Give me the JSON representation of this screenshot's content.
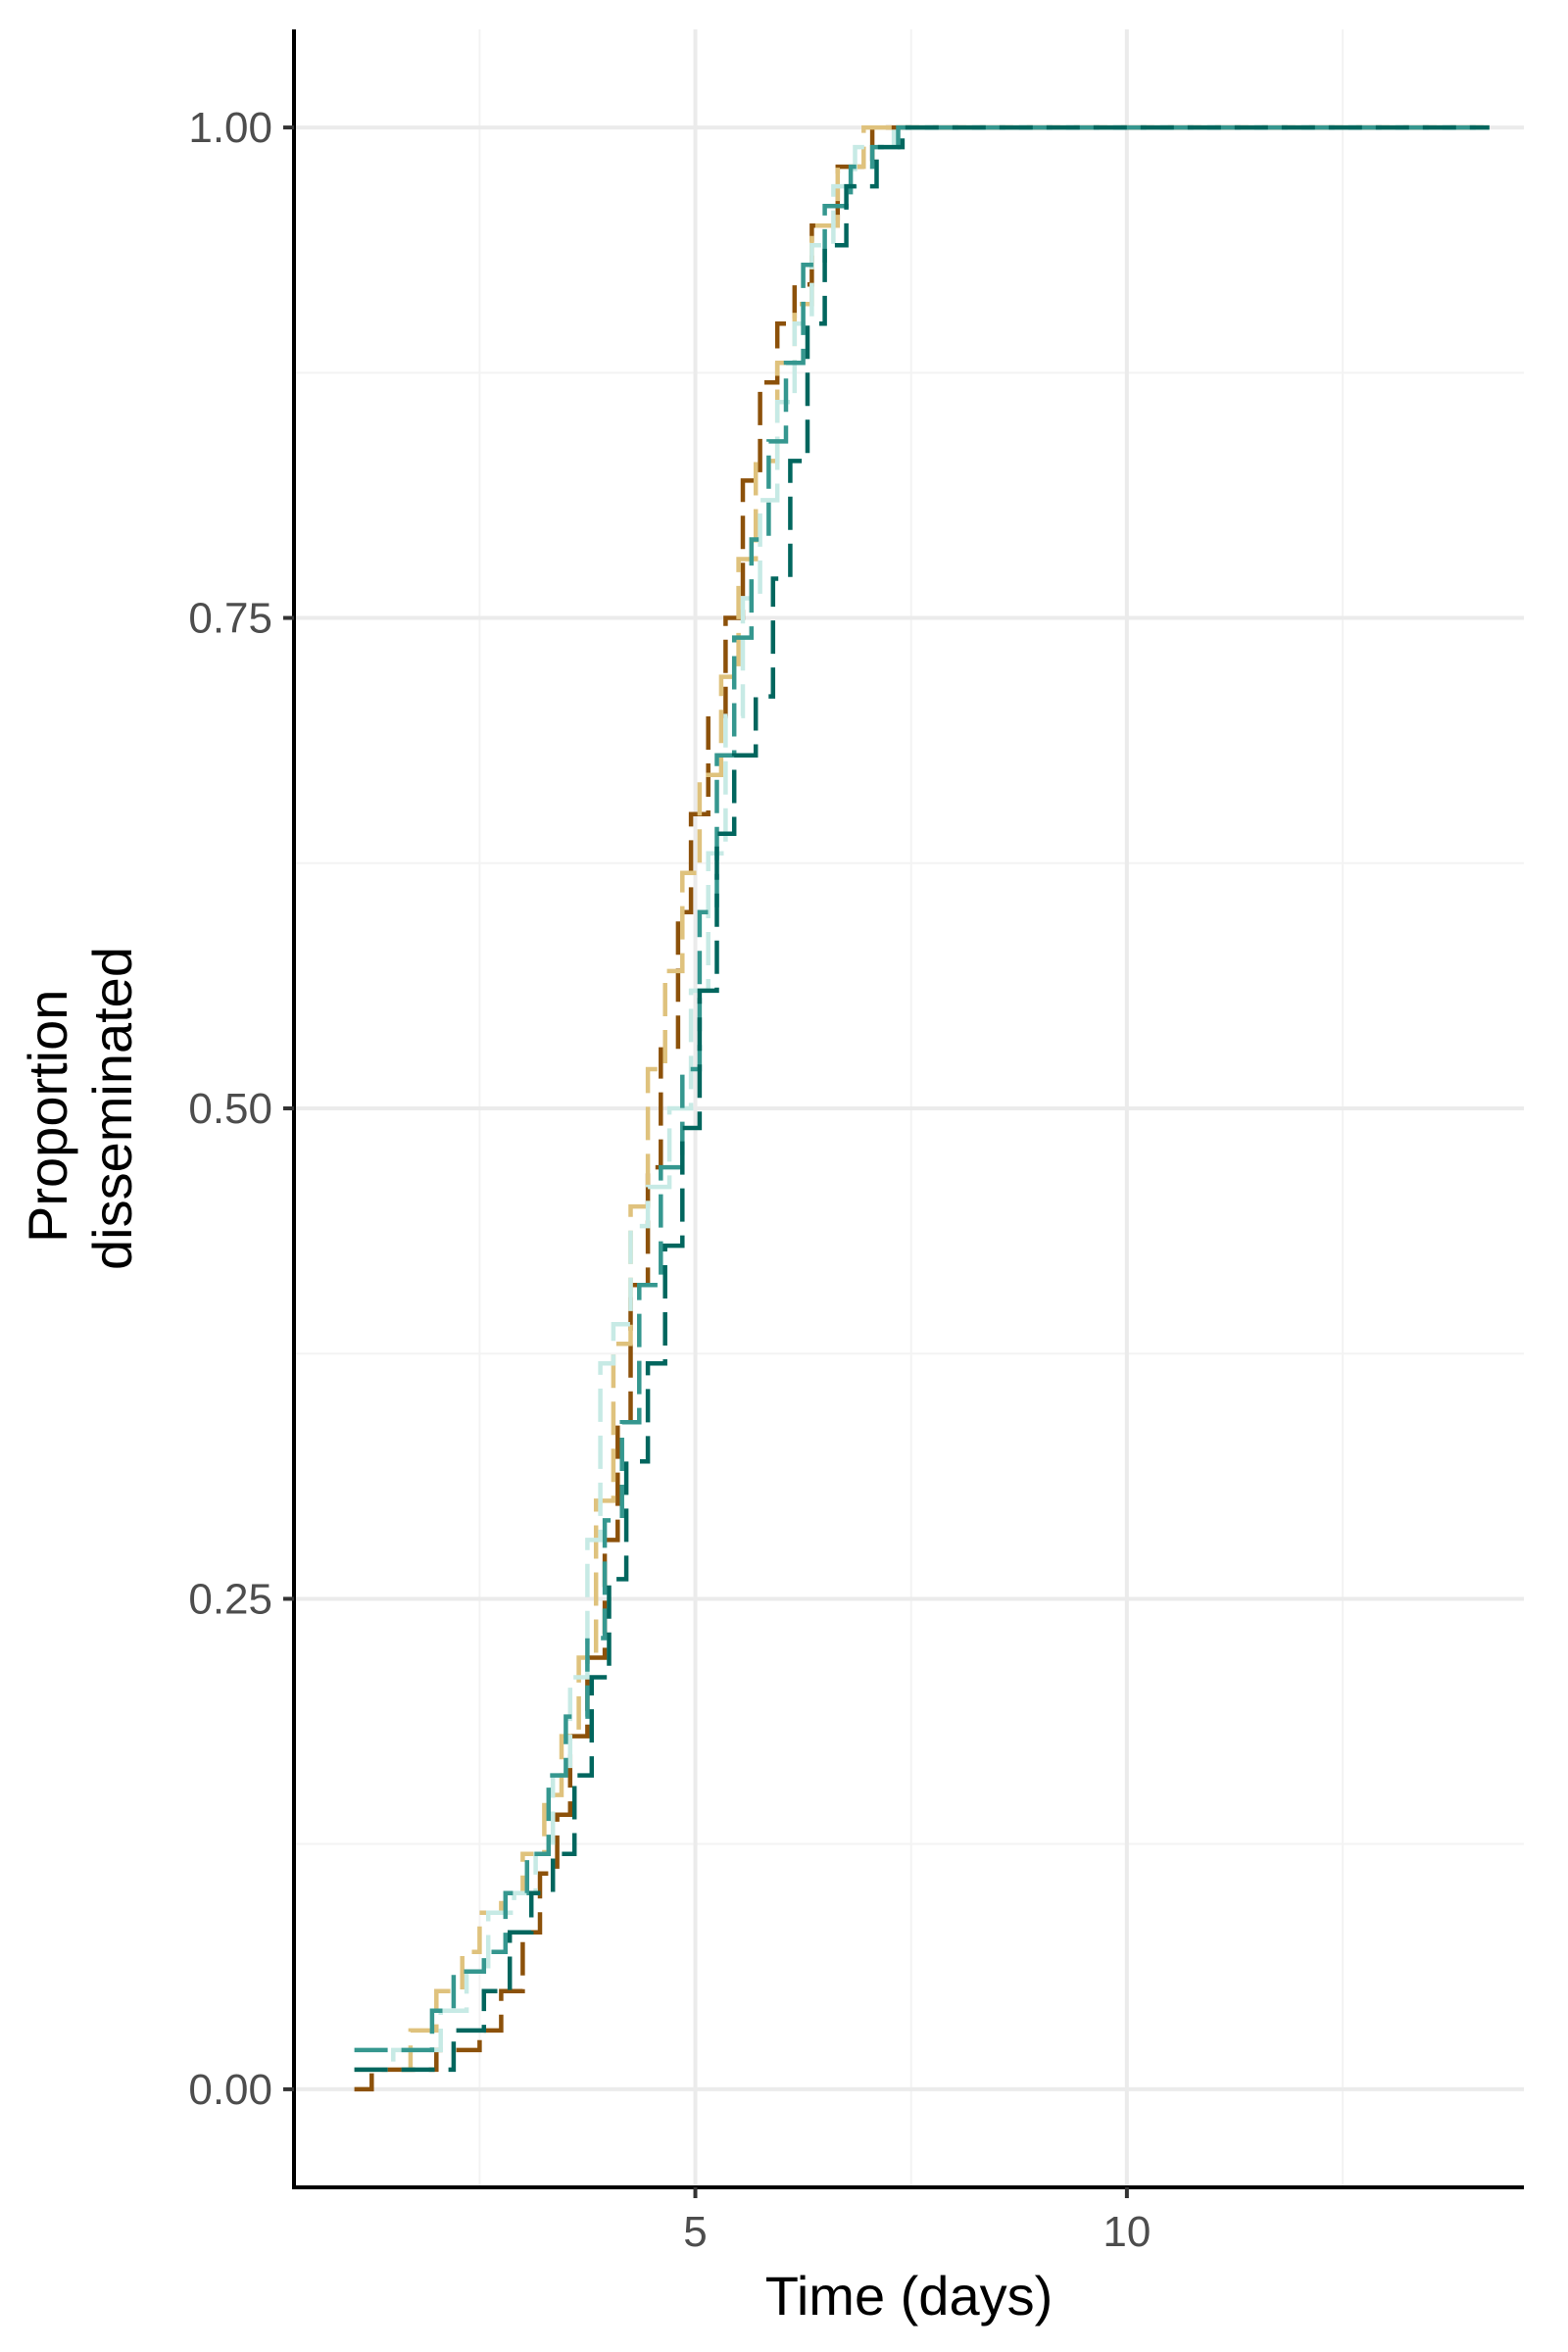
{
  "chart_data": {
    "type": "line",
    "title": "",
    "xlabel": "Time (days)",
    "ylabel": [
      "Proportion",
      "disseminated"
    ],
    "xlim": [
      0.35,
      14.6
    ],
    "ylim": [
      -0.05,
      1.05
    ],
    "x_ticks": [
      5,
      10
    ],
    "x_tick_labels": [
      "5",
      "10"
    ],
    "y_ticks": [
      0,
      0.25,
      0.5,
      0.75,
      1.0
    ],
    "y_tick_labels": [
      "0.00",
      "0.25",
      "0.50",
      "0.75",
      "1.00"
    ],
    "x_minor_ticks": [
      2.5,
      7.5,
      12.5
    ],
    "y_minor_ticks": [
      0.125,
      0.375,
      0.625,
      0.875
    ],
    "grid": true,
    "legend": "none",
    "series": [
      {
        "color": "#8c510a",
        "dash": "34 14",
        "points": [
          [
            1.05,
            0.0
          ],
          [
            1.25,
            0.01
          ],
          [
            1.6,
            0.01
          ],
          [
            2.0,
            0.02
          ],
          [
            2.3,
            0.02
          ],
          [
            2.5,
            0.03
          ],
          [
            2.75,
            0.05
          ],
          [
            3.0,
            0.08
          ],
          [
            3.2,
            0.11
          ],
          [
            3.4,
            0.14
          ],
          [
            3.55,
            0.18
          ],
          [
            3.75,
            0.22
          ],
          [
            3.95,
            0.28
          ],
          [
            4.1,
            0.34
          ],
          [
            4.25,
            0.41
          ],
          [
            4.45,
            0.47
          ],
          [
            4.6,
            0.53
          ],
          [
            4.8,
            0.6
          ],
          [
            4.95,
            0.65
          ],
          [
            5.15,
            0.7
          ],
          [
            5.35,
            0.75
          ],
          [
            5.55,
            0.82
          ],
          [
            5.75,
            0.87
          ],
          [
            5.95,
            0.9
          ],
          [
            6.15,
            0.92
          ],
          [
            6.35,
            0.95
          ],
          [
            6.65,
            0.98
          ],
          [
            7.05,
            1.0
          ],
          [
            14.2,
            1.0
          ]
        ]
      },
      {
        "color": "#dfc27d",
        "dash": "34 14",
        "points": [
          [
            1.05,
            0.01
          ],
          [
            1.4,
            0.01
          ],
          [
            1.7,
            0.03
          ],
          [
            2.0,
            0.05
          ],
          [
            2.3,
            0.07
          ],
          [
            2.5,
            0.09
          ],
          [
            2.75,
            0.1
          ],
          [
            3.0,
            0.12
          ],
          [
            3.25,
            0.15
          ],
          [
            3.45,
            0.18
          ],
          [
            3.65,
            0.22
          ],
          [
            3.85,
            0.3
          ],
          [
            4.05,
            0.38
          ],
          [
            4.25,
            0.45
          ],
          [
            4.45,
            0.52
          ],
          [
            4.65,
            0.57
          ],
          [
            4.85,
            0.62
          ],
          [
            5.05,
            0.67
          ],
          [
            5.3,
            0.72
          ],
          [
            5.5,
            0.78
          ],
          [
            5.7,
            0.83
          ],
          [
            5.95,
            0.88
          ],
          [
            6.15,
            0.91
          ],
          [
            6.35,
            0.95
          ],
          [
            6.65,
            0.98
          ],
          [
            6.95,
            1.0
          ],
          [
            14.2,
            1.0
          ]
        ]
      },
      {
        "color": "#c7eae5",
        "dash": "34 14",
        "points": [
          [
            1.05,
            0.01
          ],
          [
            1.5,
            0.02
          ],
          [
            1.8,
            0.02
          ],
          [
            2.05,
            0.04
          ],
          [
            2.35,
            0.06
          ],
          [
            2.6,
            0.09
          ],
          [
            2.9,
            0.1
          ],
          [
            3.15,
            0.12
          ],
          [
            3.35,
            0.16
          ],
          [
            3.55,
            0.21
          ],
          [
            3.75,
            0.28
          ],
          [
            3.9,
            0.37
          ],
          [
            4.05,
            0.39
          ],
          [
            4.25,
            0.44
          ],
          [
            4.45,
            0.46
          ],
          [
            4.7,
            0.5
          ],
          [
            4.95,
            0.56
          ],
          [
            5.15,
            0.63
          ],
          [
            5.35,
            0.7
          ],
          [
            5.55,
            0.76
          ],
          [
            5.75,
            0.81
          ],
          [
            5.95,
            0.86
          ],
          [
            6.15,
            0.9
          ],
          [
            6.35,
            0.94
          ],
          [
            6.6,
            0.97
          ],
          [
            6.85,
            0.99
          ],
          [
            7.3,
            1.0
          ],
          [
            14.2,
            1.0
          ]
        ]
      },
      {
        "color": "#35978f",
        "dash": "34 14",
        "points": [
          [
            1.05,
            0.02
          ],
          [
            1.6,
            0.02
          ],
          [
            1.95,
            0.04
          ],
          [
            2.2,
            0.06
          ],
          [
            2.55,
            0.07
          ],
          [
            2.8,
            0.1
          ],
          [
            3.05,
            0.12
          ],
          [
            3.3,
            0.16
          ],
          [
            3.5,
            0.19
          ],
          [
            3.75,
            0.23
          ],
          [
            3.95,
            0.29
          ],
          [
            4.15,
            0.34
          ],
          [
            4.35,
            0.41
          ],
          [
            4.6,
            0.47
          ],
          [
            4.85,
            0.52
          ],
          [
            5.05,
            0.6
          ],
          [
            5.25,
            0.68
          ],
          [
            5.45,
            0.74
          ],
          [
            5.65,
            0.79
          ],
          [
            5.85,
            0.84
          ],
          [
            6.05,
            0.88
          ],
          [
            6.25,
            0.93
          ],
          [
            6.5,
            0.96
          ],
          [
            6.8,
            0.98
          ],
          [
            7.05,
            0.99
          ],
          [
            7.35,
            1.0
          ],
          [
            14.2,
            1.0
          ]
        ]
      },
      {
        "color": "#01665e",
        "dash": "34 14",
        "points": [
          [
            1.05,
            0.01
          ],
          [
            1.9,
            0.01
          ],
          [
            2.2,
            0.03
          ],
          [
            2.55,
            0.05
          ],
          [
            2.85,
            0.08
          ],
          [
            3.1,
            0.1
          ],
          [
            3.35,
            0.12
          ],
          [
            3.6,
            0.16
          ],
          [
            3.8,
            0.21
          ],
          [
            4.0,
            0.26
          ],
          [
            4.2,
            0.32
          ],
          [
            4.45,
            0.37
          ],
          [
            4.65,
            0.43
          ],
          [
            4.85,
            0.49
          ],
          [
            5.05,
            0.56
          ],
          [
            5.25,
            0.64
          ],
          [
            5.45,
            0.68
          ],
          [
            5.7,
            0.71
          ],
          [
            5.9,
            0.77
          ],
          [
            6.1,
            0.83
          ],
          [
            6.3,
            0.9
          ],
          [
            6.5,
            0.94
          ],
          [
            6.75,
            0.97
          ],
          [
            7.1,
            0.99
          ],
          [
            7.4,
            1.0
          ],
          [
            14.2,
            1.0
          ]
        ]
      }
    ]
  }
}
